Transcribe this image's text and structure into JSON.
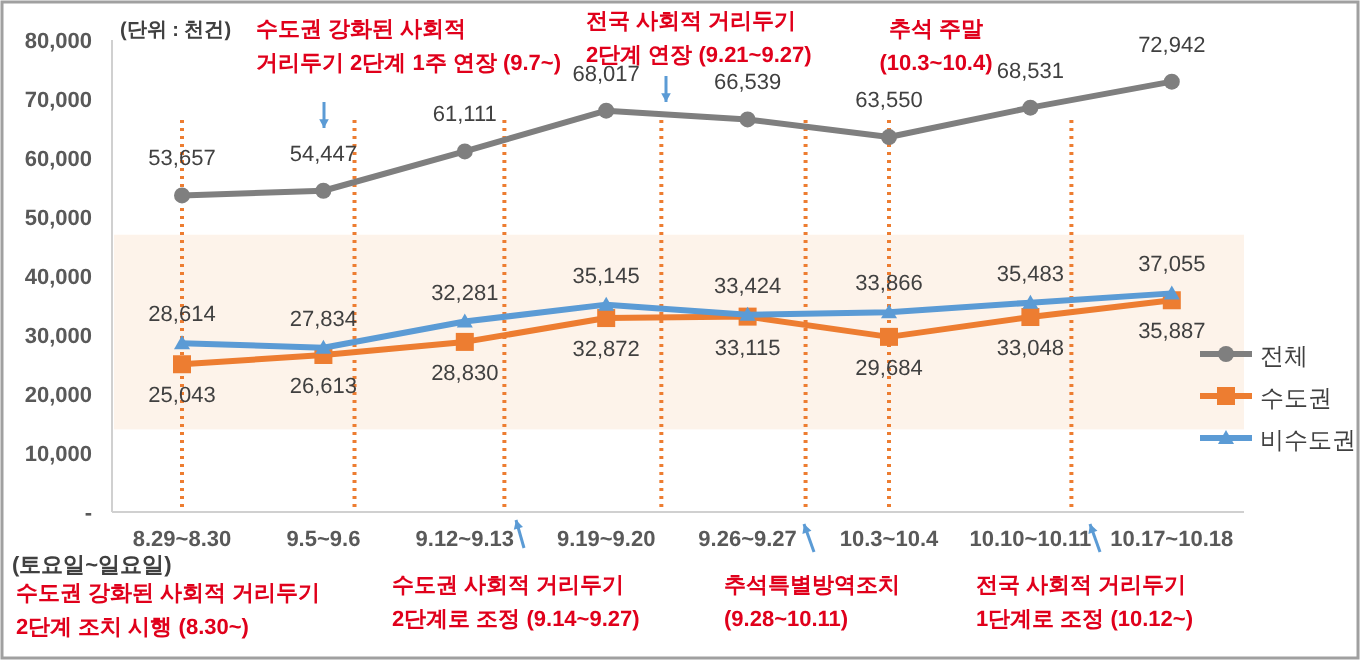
{
  "chart_data": {
    "type": "line",
    "categories": [
      "8.29~8.30",
      "9.5~9.6",
      "9.12~9.13",
      "9.19~9.20",
      "9.26~9.27",
      "10.3~10.4",
      "10.10~10.11",
      "10.17~10.18"
    ],
    "series": [
      {
        "name": "전체",
        "color": "#7f7f7f",
        "marker": "circle",
        "values": [
          53657,
          54447,
          61111,
          68017,
          66539,
          63550,
          68531,
          72942
        ],
        "value_labels": [
          "53,657",
          "54,447",
          "61,111",
          "68,017",
          "66,539",
          "63,550",
          "68,531",
          "72,942"
        ]
      },
      {
        "name": "수도권",
        "color": "#ed7d31",
        "marker": "square",
        "values": [
          25043,
          26613,
          28830,
          32872,
          33115,
          29684,
          33048,
          35887
        ],
        "value_labels": [
          "25,043",
          "26,613",
          "28,830",
          "32,872",
          "33,115",
          "29,684",
          "33,048",
          "35,887"
        ]
      },
      {
        "name": "비수도권",
        "color": "#5b9bd5",
        "marker": "triangle",
        "values": [
          28614,
          27834,
          32281,
          35145,
          33424,
          33866,
          35483,
          37055
        ],
        "value_labels": [
          "28,614",
          "27,834",
          "32,281",
          "35,145",
          "33,424",
          "33,866",
          "35,483",
          "37,055"
        ]
      }
    ],
    "ylim": [
      0,
      80000
    ],
    "yticks": [
      {
        "value": 0,
        "label": "-"
      },
      {
        "value": 10000,
        "label": "10,000"
      },
      {
        "value": 20000,
        "label": "20,000"
      },
      {
        "value": 30000,
        "label": "30,000"
      },
      {
        "value": 40000,
        "label": "40,000"
      },
      {
        "value": 50000,
        "label": "50,000"
      },
      {
        "value": 60000,
        "label": "60,000"
      },
      {
        "value": 70000,
        "label": "70,000"
      },
      {
        "value": 80000,
        "label": "80,000"
      }
    ],
    "legend": "right",
    "bands": [
      {
        "axis": "y",
        "from": 14000,
        "to": 47000,
        "color": "#fdf3ea"
      }
    ],
    "annotations": [
      "(단위 : 천건)",
      "수도권 강화된 사회적\n거리두기 2단계 1주 연장 (9.7~)",
      "전국 사회적 거리두기\n2단계 연장 (9.21~9.27)",
      "추석 주말\n(10.3~10.4)",
      "(토요일~일요일)",
      "수도권 강화된 사회적 거리두기\n2단계 조치 시행 (8.30~)",
      "수도권 사회적 거리두기\n2단계로 조정 (9.14~9.27)",
      "추석특별방역조치\n(9.28~10.11)",
      "전국 사회적 거리두기\n1단계로 조정 (10.12~)"
    ]
  }
}
